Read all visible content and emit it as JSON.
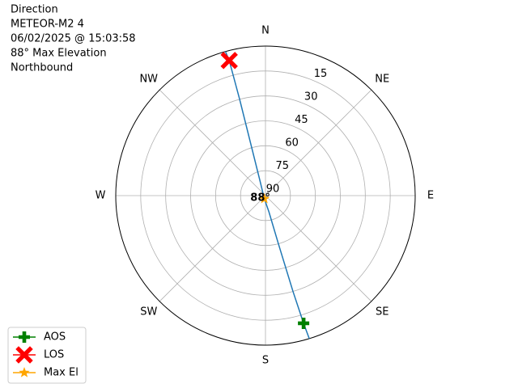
{
  "chart_data": {
    "type": "polar",
    "title_lines": [
      "Direction",
      "METEOR-M2 4",
      "06/02/2025 @ 15:03:58",
      "88° Max Elevation",
      "Northbound"
    ],
    "theta_direction": "clockwise",
    "theta_zero": "N",
    "thetaticks": [
      {
        "value": 0,
        "label": "N"
      },
      {
        "value": 45,
        "label": "NE"
      },
      {
        "value": 90,
        "label": "E"
      },
      {
        "value": 135,
        "label": "SE"
      },
      {
        "value": 180,
        "label": "S"
      },
      {
        "value": 225,
        "label": "SW"
      },
      {
        "value": 270,
        "label": "W"
      },
      {
        "value": 315,
        "label": "NW"
      }
    ],
    "rlim": [
      90,
      0
    ],
    "rticks": [
      15,
      30,
      45,
      60,
      75,
      90
    ],
    "grid": true,
    "track": {
      "color": "#1f77b4",
      "az": [
        163,
        163.4,
        164,
        165,
        168,
        200,
        340,
        344,
        345,
        345,
        344.5
      ],
      "el": [
        0,
        9.8,
        30,
        60,
        80,
        88,
        80,
        60,
        30,
        5.8,
        0
      ]
    },
    "series": [
      {
        "name": "AOS",
        "color": "#008000",
        "marker": "plus",
        "az": [
          163.4
        ],
        "el": [
          9.8
        ]
      },
      {
        "name": "LOS",
        "color": "#ff0000",
        "marker": "x",
        "az": [
          345
        ],
        "el": [
          5.8
        ]
      },
      {
        "name": "Max El",
        "color": "#ffa500",
        "marker": "star",
        "az": [
          200
        ],
        "el": [
          88
        ],
        "value_labels": [
          "88°"
        ]
      }
    ],
    "legend": "lower left"
  }
}
